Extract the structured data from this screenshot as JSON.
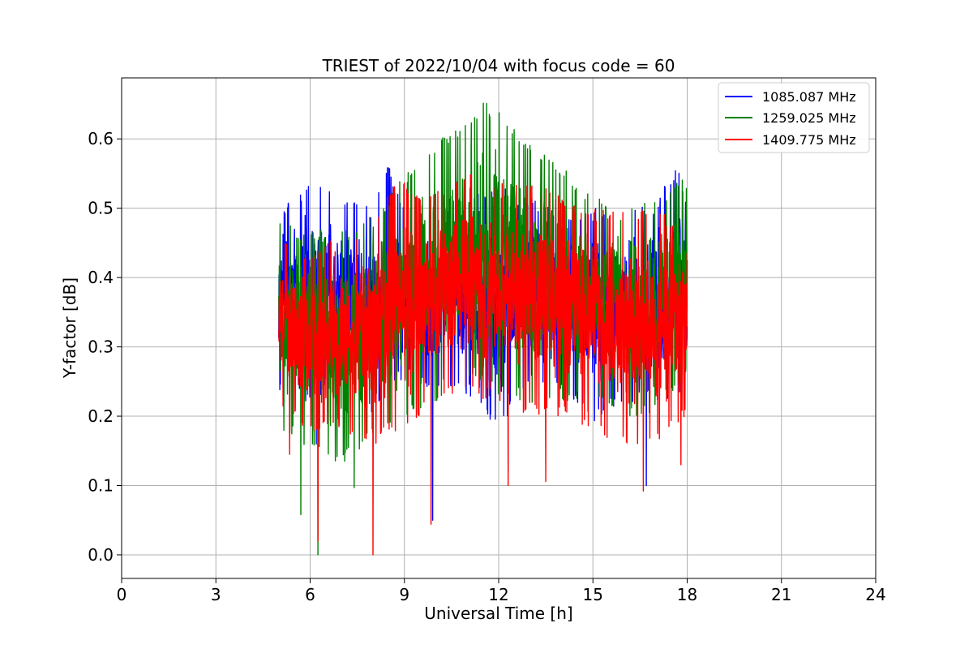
{
  "chart_data": {
    "type": "line",
    "title": "TRIEST of 2022/10/04 with focus code = 60",
    "xlabel": "Universal Time [h]",
    "ylabel": "Y-factor [dB]",
    "xlim": [
      0,
      24
    ],
    "ylim": [
      -0.034,
      0.688
    ],
    "xticks": [
      0,
      3,
      6,
      9,
      12,
      15,
      18,
      21,
      24
    ],
    "yticks": [
      0.0,
      0.1,
      0.2,
      0.3,
      0.4,
      0.5,
      0.6
    ],
    "ytick_labels": [
      "0.0",
      "0.1",
      "0.2",
      "0.3",
      "0.4",
      "0.5",
      "0.6"
    ],
    "grid": true,
    "legend_position": "top-right",
    "x_range": [
      5.0,
      18.0
    ],
    "series": [
      {
        "name": "1085.087 MHz",
        "color": "#0000ff",
        "envelope": [
          {
            "x": 5.0,
            "low": 0.23,
            "high": 0.5
          },
          {
            "x": 6.0,
            "low": 0.22,
            "high": 0.54
          },
          {
            "x": 7.0,
            "low": 0.24,
            "high": 0.52
          },
          {
            "x": 8.0,
            "low": 0.2,
            "high": 0.5
          },
          {
            "x": 8.5,
            "low": 0.24,
            "high": 0.565
          },
          {
            "x": 9.0,
            "low": 0.25,
            "high": 0.5
          },
          {
            "x": 10.0,
            "low": 0.24,
            "high": 0.51
          },
          {
            "x": 11.0,
            "low": 0.23,
            "high": 0.52
          },
          {
            "x": 12.0,
            "low": 0.18,
            "high": 0.53
          },
          {
            "x": 13.0,
            "low": 0.24,
            "high": 0.52
          },
          {
            "x": 14.0,
            "low": 0.24,
            "high": 0.5
          },
          {
            "x": 15.0,
            "low": 0.19,
            "high": 0.5
          },
          {
            "x": 16.0,
            "low": 0.22,
            "high": 0.5
          },
          {
            "x": 17.0,
            "low": 0.22,
            "high": 0.51
          },
          {
            "x": 17.7,
            "low": 0.23,
            "high": 0.565
          },
          {
            "x": 18.0,
            "low": 0.25,
            "high": 0.5
          }
        ],
        "dips": [
          {
            "x": 6.2,
            "y": 0.16
          },
          {
            "x": 9.9,
            "y": 0.05
          },
          {
            "x": 12.3,
            "y": 0.12
          },
          {
            "x": 16.7,
            "y": 0.1
          }
        ]
      },
      {
        "name": "1259.025 MHz",
        "color": "#008000",
        "envelope": [
          {
            "x": 5.0,
            "low": 0.18,
            "high": 0.48
          },
          {
            "x": 6.0,
            "low": 0.15,
            "high": 0.47
          },
          {
            "x": 7.0,
            "low": 0.13,
            "high": 0.47
          },
          {
            "x": 8.0,
            "low": 0.17,
            "high": 0.49
          },
          {
            "x": 9.0,
            "low": 0.2,
            "high": 0.55
          },
          {
            "x": 10.0,
            "low": 0.22,
            "high": 0.6
          },
          {
            "x": 11.0,
            "low": 0.25,
            "high": 0.63
          },
          {
            "x": 11.5,
            "low": 0.25,
            "high": 0.655
          },
          {
            "x": 12.0,
            "low": 0.23,
            "high": 0.64
          },
          {
            "x": 13.0,
            "low": 0.22,
            "high": 0.6
          },
          {
            "x": 14.0,
            "low": 0.22,
            "high": 0.56
          },
          {
            "x": 15.0,
            "low": 0.22,
            "high": 0.52
          },
          {
            "x": 16.0,
            "low": 0.2,
            "high": 0.5
          },
          {
            "x": 17.0,
            "low": 0.2,
            "high": 0.52
          },
          {
            "x": 18.0,
            "low": 0.26,
            "high": 0.545
          }
        ],
        "dips": [
          {
            "x": 5.7,
            "y": 0.058
          },
          {
            "x": 6.25,
            "y": 0.0
          },
          {
            "x": 7.4,
            "y": 0.097
          }
        ]
      },
      {
        "name": "1409.775 MHz",
        "color": "#ff0000",
        "envelope": [
          {
            "x": 5.0,
            "low": 0.22,
            "high": 0.47
          },
          {
            "x": 6.0,
            "low": 0.17,
            "high": 0.44
          },
          {
            "x": 7.0,
            "low": 0.18,
            "high": 0.46
          },
          {
            "x": 8.0,
            "low": 0.16,
            "high": 0.49
          },
          {
            "x": 8.8,
            "low": 0.17,
            "high": 0.55
          },
          {
            "x": 9.5,
            "low": 0.2,
            "high": 0.52
          },
          {
            "x": 10.0,
            "low": 0.22,
            "high": 0.53
          },
          {
            "x": 11.0,
            "low": 0.23,
            "high": 0.55
          },
          {
            "x": 12.0,
            "low": 0.22,
            "high": 0.54
          },
          {
            "x": 13.0,
            "low": 0.2,
            "high": 0.54
          },
          {
            "x": 14.0,
            "low": 0.2,
            "high": 0.52
          },
          {
            "x": 15.0,
            "low": 0.18,
            "high": 0.5
          },
          {
            "x": 16.0,
            "low": 0.15,
            "high": 0.5
          },
          {
            "x": 17.0,
            "low": 0.16,
            "high": 0.5
          },
          {
            "x": 18.0,
            "low": 0.2,
            "high": 0.48
          }
        ],
        "dips": [
          {
            "x": 5.35,
            "y": 0.145
          },
          {
            "x": 6.25,
            "y": 0.02
          },
          {
            "x": 8.0,
            "y": 0.0
          },
          {
            "x": 9.85,
            "y": 0.044
          },
          {
            "x": 12.3,
            "y": 0.1
          },
          {
            "x": 13.5,
            "y": 0.106
          },
          {
            "x": 16.6,
            "y": 0.092
          },
          {
            "x": 17.8,
            "y": 0.13
          }
        ]
      }
    ]
  }
}
